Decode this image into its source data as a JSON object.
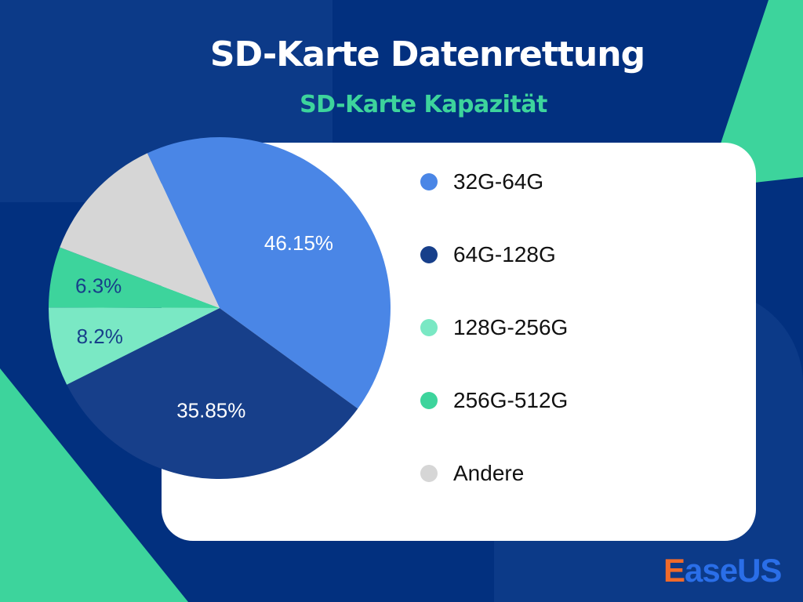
{
  "title": "SD-Karte Datenrettung",
  "subtitle": "SD-Karte Kapazität",
  "logo_text": "EaseUS",
  "colors": {
    "background": "#02307f",
    "accent": "#3dd49c",
    "panel": "#ffffff"
  },
  "chart_data": {
    "type": "pie",
    "title": "SD-Karte Kapazität",
    "categories": [
      "32G-64G",
      "64G-128G",
      "128G-256G",
      "256G-512G",
      "Andere"
    ],
    "values": [
      46.15,
      35.85,
      8.2,
      6.3,
      13.5
    ],
    "data_labels": [
      "46.15%",
      "35.85%",
      "8.2%",
      "6.3%",
      ""
    ],
    "colors": [
      "#4a86e6",
      "#173f8a",
      "#7ae8c4",
      "#3dd49c",
      "#d6d6d6"
    ],
    "label_colors": [
      "#ffffff",
      "#ffffff",
      "#173f8a",
      "#173f8a",
      "#173f8a"
    ],
    "legend_position": "right"
  }
}
